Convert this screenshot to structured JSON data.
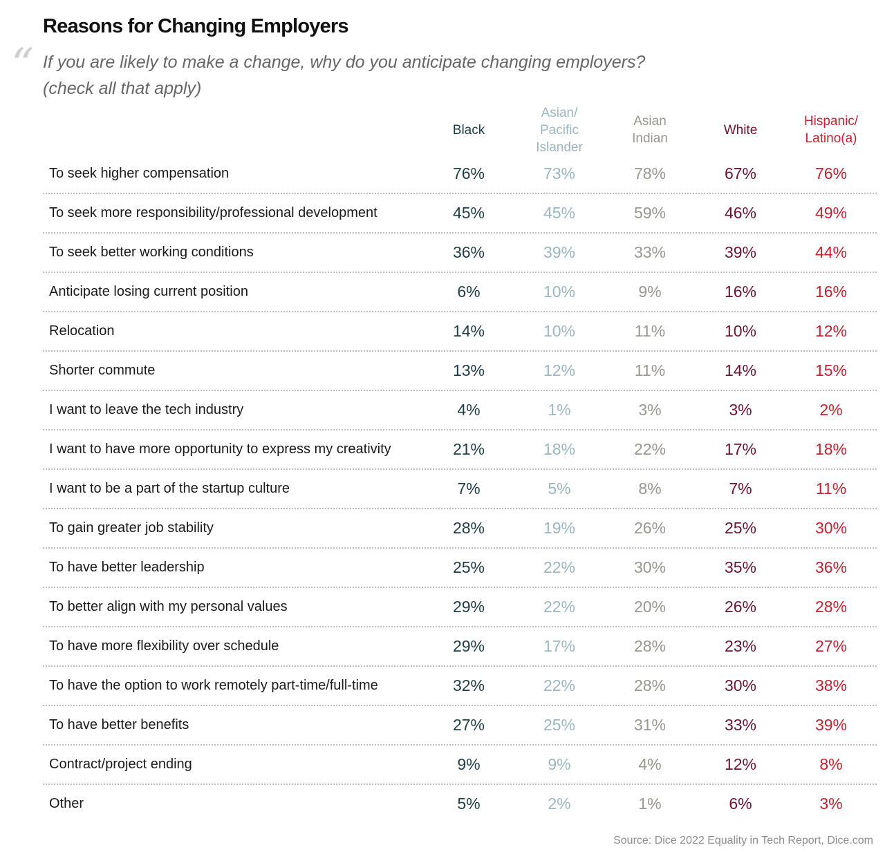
{
  "title": "Reasons for Changing Employers",
  "subtitle_line1": "If you are likely to make a change, why do you anticipate changing employers?",
  "subtitle_line2": "(check all that apply)",
  "source": "Source: Dice 2022 Equality in Tech Report, Dice.com",
  "colors": {
    "Black": "#1f3d44",
    "Asian/Pacific Islander": "#9cb6c0",
    "Asian Indian": "#9a9690",
    "White": "#6e1230",
    "Hispanic/Latino(a)": "#c8202f"
  },
  "chart_data": {
    "type": "table",
    "columns": [
      {
        "name": "Black",
        "label_lines": [
          "Black"
        ]
      },
      {
        "name": "Asian/Pacific Islander",
        "label_lines": [
          "Asian/",
          "Pacific",
          "Islander"
        ]
      },
      {
        "name": "Asian Indian",
        "label_lines": [
          "Asian",
          "Indian"
        ]
      },
      {
        "name": "White",
        "label_lines": [
          "White"
        ]
      },
      {
        "name": "Hispanic/Latino(a)",
        "label_lines": [
          "Hispanic/",
          "Latino(a)"
        ]
      }
    ],
    "rows": [
      {
        "label": "To seek higher compensation",
        "values": [
          "76%",
          "73%",
          "78%",
          "67%",
          "76%"
        ]
      },
      {
        "label": "To seek more responsibility/professional development",
        "values": [
          "45%",
          "45%",
          "59%",
          "46%",
          "49%"
        ]
      },
      {
        "label": "To seek better working conditions",
        "values": [
          "36%",
          "39%",
          "33%",
          "39%",
          "44%"
        ]
      },
      {
        "label": "Anticipate losing current position",
        "values": [
          "6%",
          "10%",
          "9%",
          "16%",
          "16%"
        ]
      },
      {
        "label": "Relocation",
        "values": [
          "14%",
          "10%",
          "11%",
          "10%",
          "12%"
        ]
      },
      {
        "label": "Shorter commute",
        "values": [
          "13%",
          "12%",
          "11%",
          "14%",
          "15%"
        ]
      },
      {
        "label": "I want to leave the tech industry",
        "values": [
          "4%",
          "1%",
          "3%",
          "3%",
          "2%"
        ]
      },
      {
        "label": "I want to have more opportunity to express my creativity",
        "values": [
          "21%",
          "18%",
          "22%",
          "17%",
          "18%"
        ]
      },
      {
        "label": "I want to be a part of the startup culture",
        "values": [
          "7%",
          "5%",
          "8%",
          "7%",
          "11%"
        ]
      },
      {
        "label": "To gain greater job stability",
        "values": [
          "28%",
          "19%",
          "26%",
          "25%",
          "30%"
        ]
      },
      {
        "label": "To have better leadership",
        "values": [
          "25%",
          "22%",
          "30%",
          "35%",
          "36%"
        ]
      },
      {
        "label": "To better align with my personal values",
        "values": [
          "29%",
          "22%",
          "20%",
          "26%",
          "28%"
        ]
      },
      {
        "label": "To have more flexibility over schedule",
        "values": [
          "29%",
          "17%",
          "28%",
          "23%",
          "27%"
        ]
      },
      {
        "label": "To have the option to work remotely part-time/full-time",
        "values": [
          "32%",
          "22%",
          "28%",
          "30%",
          "38%"
        ]
      },
      {
        "label": "To have better benefits",
        "values": [
          "27%",
          "25%",
          "31%",
          "33%",
          "39%"
        ]
      },
      {
        "label": "Contract/project ending",
        "values": [
          "9%",
          "9%",
          "4%",
          "12%",
          "8%"
        ]
      },
      {
        "label": "Other",
        "values": [
          "5%",
          "2%",
          "1%",
          "6%",
          "3%"
        ]
      }
    ]
  }
}
